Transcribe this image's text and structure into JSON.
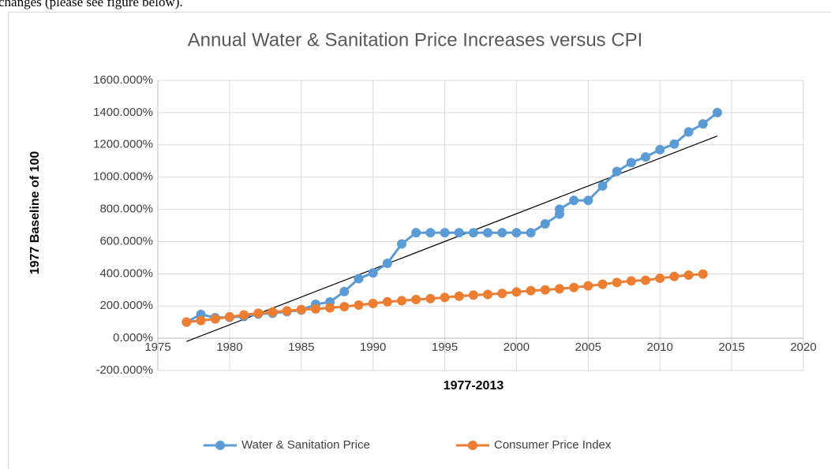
{
  "page_text": "changes (please see figure below).",
  "chart_data": {
    "type": "line",
    "title": "Annual Water & Sanitation Price Increases versus CPI",
    "x_label": "1977-2013",
    "y_label": "1977  Baseline of 100",
    "xlim": [
      1975,
      2020
    ],
    "xticks": [
      1975,
      1980,
      1985,
      1990,
      1995,
      2000,
      2005,
      2010,
      2015,
      2020
    ],
    "ylim": [
      -200,
      1600
    ],
    "yticks": [
      {
        "value": -200,
        "label": "-200.000%"
      },
      {
        "value": 0,
        "label": "0.000%"
      },
      {
        "value": 200,
        "label": "200.000%"
      },
      {
        "value": 400,
        "label": "400.000%"
      },
      {
        "value": 600,
        "label": "600.000%"
      },
      {
        "value": 800,
        "label": "800.000%"
      },
      {
        "value": 1000,
        "label": "1000.000%"
      },
      {
        "value": 1200,
        "label": "1200.000%"
      },
      {
        "value": 1400,
        "label": "1400.000%"
      },
      {
        "value": 1600,
        "label": "1600.000%"
      }
    ],
    "grid": true,
    "legend": "bottom",
    "series": [
      {
        "name": "Water & Sanitation Price",
        "color": "#5b9bd5",
        "x": [
          1977,
          1978,
          1979,
          1980,
          1981,
          1982,
          1983,
          1984,
          1985,
          1986,
          1987,
          1988,
          1989,
          1990,
          1991,
          1992,
          1993,
          1994,
          1995,
          1996,
          1997,
          1998,
          1999,
          2000,
          2001,
          2002,
          2003,
          2003,
          2004,
          2005,
          2006,
          2007,
          2008,
          2009,
          2010,
          2011,
          2012,
          2013,
          2014
        ],
        "values": [
          100,
          148,
          128,
          130,
          135,
          150,
          155,
          165,
          175,
          210,
          225,
          290,
          370,
          405,
          465,
          585,
          655,
          655,
          655,
          655,
          655,
          655,
          655,
          655,
          655,
          710,
          770,
          800,
          855,
          855,
          945,
          1035,
          1090,
          1125,
          1170,
          1205,
          1280,
          1330,
          1400
        ]
      },
      {
        "name": "Consumer Price Index",
        "color": "#ed7d31",
        "x": [
          1977,
          1978,
          1979,
          1980,
          1981,
          1982,
          1983,
          1984,
          1985,
          1986,
          1987,
          1988,
          1989,
          1990,
          1991,
          1992,
          1993,
          1994,
          1995,
          1996,
          1997,
          1998,
          1999,
          2000,
          2001,
          2002,
          2003,
          2004,
          2005,
          2006,
          2007,
          2008,
          2009,
          2010,
          2011,
          2012,
          2013
        ],
        "values": [
          100,
          110,
          120,
          133,
          145,
          155,
          163,
          170,
          178,
          182,
          188,
          196,
          206,
          216,
          226,
          233,
          240,
          246,
          253,
          261,
          268,
          272,
          278,
          287,
          295,
          300,
          307,
          315,
          325,
          335,
          346,
          356,
          360,
          372,
          383,
          392,
          398
        ]
      }
    ],
    "trendline": {
      "color": "#000000",
      "x": [
        1977,
        2014
      ],
      "values": [
        -20,
        1255
      ]
    }
  }
}
